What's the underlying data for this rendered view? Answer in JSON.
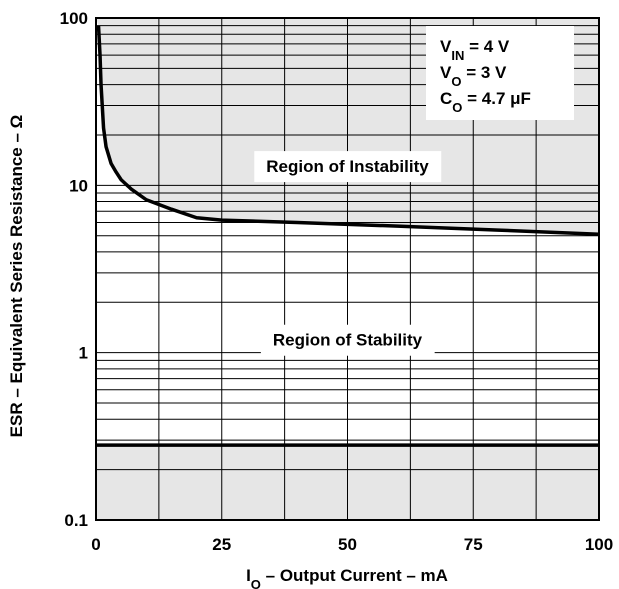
{
  "chart_data": {
    "type": "line",
    "xlabel": {
      "main": "I",
      "sub": "O",
      "rest": " – Output Current – mA"
    },
    "ylabel": "ESR – Equivalent Series Resistance – Ω",
    "x_ticks": [
      "0",
      "25",
      "50",
      "75",
      "100"
    ],
    "y_ticks": [
      "0.1",
      "1",
      "10",
      "100"
    ],
    "xlim": [
      0,
      100
    ],
    "ylim": [
      0.1,
      100
    ],
    "y_scale": "log",
    "grid": true,
    "conditions": [
      {
        "main": "V",
        "sub": "IN",
        "rest": " = 4 V"
      },
      {
        "main": "V",
        "sub": "O",
        "rest": " = 3 V"
      },
      {
        "main": "C",
        "sub": "O",
        "rest": " = 4.7 μF"
      }
    ],
    "regions": [
      {
        "label": "Region of Instability",
        "x": 50,
        "y": 12
      },
      {
        "label": "Region of Stability",
        "x": 50,
        "y": 1.1
      }
    ],
    "upper_boundary": {
      "x": [
        0.5,
        0.8,
        1,
        1.5,
        2,
        3,
        4,
        5,
        7,
        10,
        15,
        20,
        25,
        40,
        60,
        80,
        100
      ],
      "y": [
        90,
        60,
        40,
        22,
        17,
        13.5,
        12,
        10.8,
        9.5,
        8.2,
        7.2,
        6.4,
        6.2,
        6.0,
        5.7,
        5.4,
        5.1
      ]
    },
    "lower_boundary": {
      "y": 0.28
    },
    "colors": {
      "unstable_fill": "#e6e6e6",
      "stable_fill": "#ffffff",
      "line": "#000000"
    }
  }
}
